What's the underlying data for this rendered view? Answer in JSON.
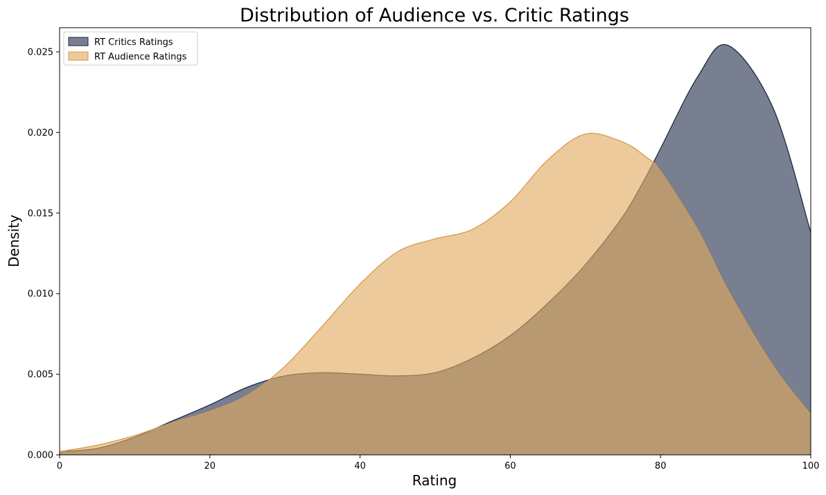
{
  "chart_data": {
    "type": "area",
    "title": "Distribution of Audience vs. Critic Ratings",
    "xlabel": "Rating",
    "ylabel": "Density",
    "xlim": [
      0,
      100
    ],
    "ylim": [
      0,
      0.0265
    ],
    "xticks": [
      0,
      20,
      40,
      60,
      80,
      100
    ],
    "xtick_labels": [
      "0",
      "20",
      "40",
      "60",
      "80",
      "100"
    ],
    "yticks": [
      0,
      0.005,
      0.01,
      0.015,
      0.02,
      0.025
    ],
    "ytick_labels": [
      "0.000",
      "0.005",
      "0.010",
      "0.015",
      "0.020",
      "0.025"
    ],
    "legend_position": "top-left",
    "x": [
      0,
      5,
      10,
      15,
      20,
      25,
      30,
      35,
      40,
      45,
      50,
      55,
      60,
      65,
      70,
      75,
      78,
      80,
      85,
      89,
      95,
      100
    ],
    "series": [
      {
        "name": "RT Critics Ratings",
        "fill": "#172340",
        "stroke": "#1a2744",
        "fill_opacity": 0.58,
        "values": [
          0.0002,
          0.0004,
          0.0011,
          0.0021,
          0.0031,
          0.0042,
          0.0049,
          0.0051,
          0.005,
          0.0049,
          0.0051,
          0.006,
          0.0074,
          0.0094,
          0.0118,
          0.0148,
          0.0172,
          0.019,
          0.0235,
          0.0254,
          0.0215,
          0.0138
        ]
      },
      {
        "name": "RT Audience Ratings",
        "fill": "#e0a95d",
        "stroke": "#d49a52",
        "fill_opacity": 0.62,
        "values": [
          0.0002,
          0.0006,
          0.0012,
          0.002,
          0.0027,
          0.0037,
          0.0055,
          0.008,
          0.0106,
          0.0126,
          0.0134,
          0.014,
          0.0157,
          0.0183,
          0.0199,
          0.0194,
          0.0185,
          0.0176,
          0.0139,
          0.0102,
          0.0055,
          0.0025
        ]
      }
    ]
  }
}
